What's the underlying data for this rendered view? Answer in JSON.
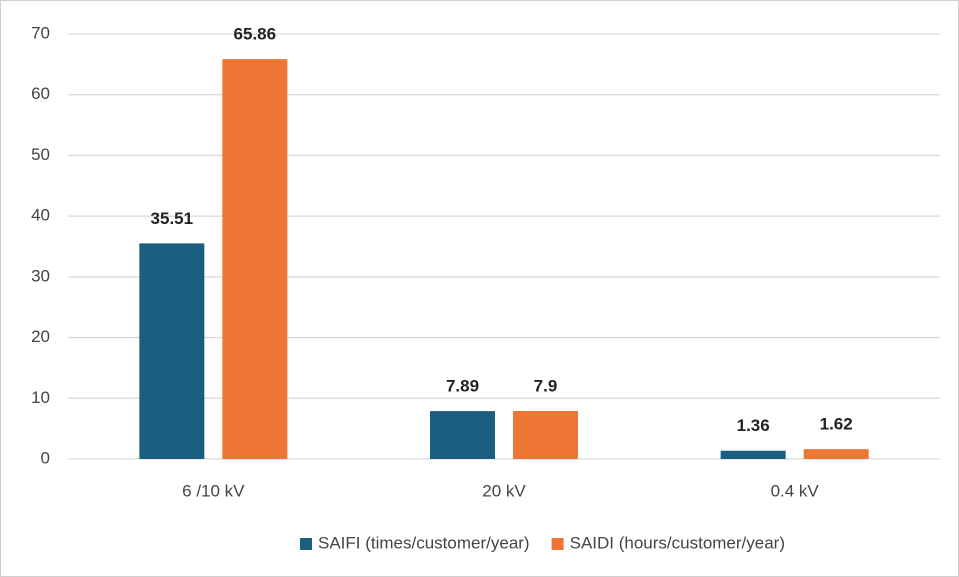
{
  "chart_data": {
    "type": "bar",
    "categories": [
      "6 /10 kV",
      "20 kV",
      "0.4 kV"
    ],
    "series": [
      {
        "name": "SAIFI (times/customer/year)",
        "color": "#1b5e7f",
        "values": [
          35.51,
          7.89,
          1.36
        ]
      },
      {
        "name": "SAIDI (hours/customer/year)",
        "color": "#ed7634",
        "values": [
          65.86,
          7.9,
          1.62
        ]
      }
    ],
    "ylim": [
      0,
      70
    ],
    "yticks": [
      0,
      10,
      20,
      30,
      40,
      50,
      60,
      70
    ],
    "grid": true,
    "legend": "bottom"
  }
}
